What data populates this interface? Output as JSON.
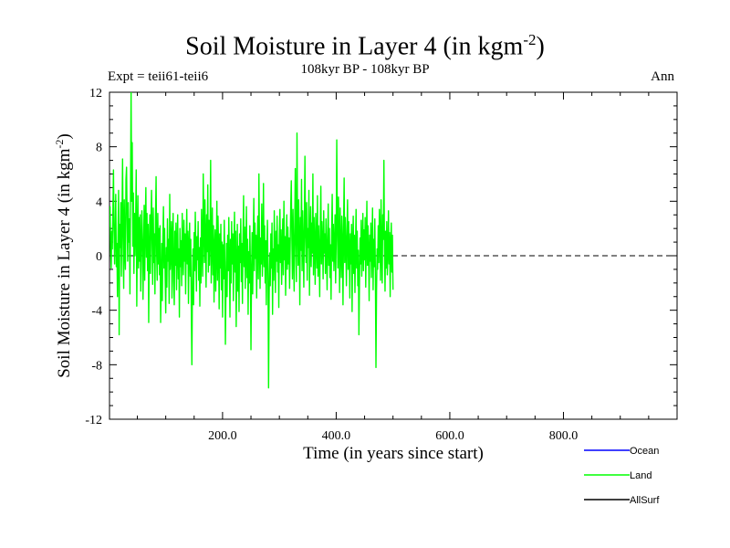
{
  "chart_data": {
    "type": "line",
    "title_main": "Soil Moisture in Layer 4 (in kgm",
    "title_sup": "-2",
    "title_close": ")",
    "subtitle": "108kyr BP - 108kyr BP",
    "left_note": "Expt = teii61-teii6",
    "right_note": "Ann",
    "xlabel": "Time (in years since start)",
    "ylabel_main": "Soil Moisture in Layer 4 (in kgm",
    "ylabel_sup": "-2",
    "ylabel_close": ")",
    "xlim": [
      1,
      1000
    ],
    "ylim": [
      -12,
      12
    ],
    "xticks": [
      200,
      400,
      600,
      800
    ],
    "xtick_labels": [
      "200.0",
      "400.0",
      "600.0",
      "800.0"
    ],
    "yticks": [
      -12,
      -8,
      -4,
      0,
      4,
      8,
      12
    ],
    "ytick_labels": [
      "-12",
      "-8",
      "-4",
      "0",
      "4",
      "8",
      "12"
    ],
    "zero_line": true,
    "legend_placement": "bottom-right, below plot",
    "series": [
      {
        "name": "Ocean",
        "color": "#0000ff",
        "values": []
      },
      {
        "name": "Land",
        "color": "#00ff00",
        "x_start": 1,
        "x_step": 1,
        "values": [
          2.1,
          3.6,
          0.4,
          -0.9,
          1.8,
          0.5,
          3.2,
          6.3,
          2.0,
          -0.6,
          1.7,
          4.5,
          -0.8,
          0.9,
          -3.0,
          1.4,
          4.8,
          -5.8,
          2.3,
          0.6,
          3.9,
          -1.5,
          2.7,
          7.1,
          1.2,
          -2.4,
          4.1,
          0.3,
          -1.0,
          5.6,
          6.5,
          2.6,
          -0.4,
          3.9,
          1.0,
          2.7,
          -2.8,
          4.5,
          12.1,
          4.0,
          8.3,
          0.7,
          4.6,
          -1.3,
          3.1,
          0.0,
          2.2,
          6.3,
          -3.7,
          1.4,
          4.4,
          -0.9,
          2.8,
          -0.4,
          3.0,
          -2.6,
          0.8,
          3.3,
          1.1,
          -3.2,
          0.5,
          3.7,
          -1.8,
          2.4,
          5.0,
          -0.1,
          3.1,
          -1.1,
          2.3,
          -4.9,
          0.4,
          3.0,
          -1.3,
          2.4,
          4.8,
          1.0,
          -2.1,
          3.5,
          -0.5,
          1.6,
          -2.8,
          2.8,
          5.8,
          0.2,
          -1.8,
          3.1,
          -0.6,
          2.0,
          -1.4,
          2.2,
          -4.9,
          -2.1,
          0.9,
          -3.3,
          1.4,
          3.6,
          -0.9,
          2.0,
          -1.6,
          -4.2,
          0.6,
          -2.3,
          2.7,
          -0.4,
          1.2,
          -3.5,
          4.5,
          -1.0,
          0.3,
          2.5,
          -3.1,
          1.3,
          3.1,
          -1.9,
          -3.6,
          1.8,
          -0.7,
          2.4,
          -2.5,
          0.6,
          3.0,
          -1.7,
          0.5,
          -4.5,
          2.0,
          -0.8,
          1.1,
          -2.2,
          3.1,
          0.2,
          -1.4,
          2.6,
          -0.4,
          1.6,
          -2.8,
          0.9,
          3.4,
          -0.6,
          1.8,
          -3.5,
          0.7,
          2.4,
          -1.5,
          1.2,
          -3.9,
          -8.0,
          -2.0,
          0.5,
          -3.6,
          1.7,
          -1.1,
          3.2,
          0.4,
          -2.6,
          1.4,
          -0.3,
          2.5,
          -1.8,
          0.6,
          -3.7,
          1.3,
          -2.0,
          3.4,
          0.8,
          -1.5,
          6.0,
          2.2,
          -0.5,
          4.1,
          1.2,
          -2.3,
          3.0,
          0.3,
          5.2,
          -1.2,
          2.6,
          -0.7,
          1.5,
          7.0,
          -2.0,
          0.9,
          3.5,
          -1.4,
          2.2,
          -3.4,
          0.6,
          1.9,
          -2.6,
          0.2,
          4.0,
          -1.8,
          2.9,
          0.5,
          -3.9,
          1.6,
          -0.9,
          2.3,
          -2.5,
          1.0,
          -4.5,
          0.8,
          -1.7,
          2.6,
          -0.4,
          -6.5,
          -2.3,
          0.9,
          -3.0,
          1.5,
          -1.1,
          2.8,
          -0.3,
          -4.5,
          1.2,
          -2.0,
          2.5,
          -0.6,
          1.6,
          -3.3,
          0.4,
          3.2,
          -1.2,
          1.8,
          -5.2,
          -1.0,
          2.3,
          -2.6,
          0.7,
          -4.1,
          1.6,
          -0.5,
          2.7,
          -1.9,
          0.9,
          -3.5,
          1.4,
          4.4,
          -0.8,
          2.1,
          -2.4,
          0.5,
          3.6,
          -1.6,
          1.2,
          -4.3,
          0.3,
          -2.0,
          2.2,
          -0.7,
          -6.9,
          -1.3,
          1.7,
          -2.8,
          0.8,
          4.2,
          -1.1,
          2.4,
          -0.2,
          1.5,
          -3.1,
          0.6,
          2.9,
          -1.7,
          6.0,
          0.9,
          -2.4,
          1.3,
          -0.6,
          3.8,
          -1.5,
          0.4,
          5.3,
          -0.8,
          2.2,
          -2.0,
          1.1,
          -3.6,
          0.7,
          2.6,
          -1.3,
          -9.7,
          -3.0,
          0.2,
          -2.2,
          1.6,
          -0.9,
          2.4,
          -4.3,
          0.5,
          -1.8,
          3.3,
          0.1,
          -2.7,
          1.8,
          -0.4,
          2.9,
          -1.2,
          0.8,
          -3.8,
          1.5,
          3.4,
          -0.5,
          1.9,
          -2.1,
          0.6,
          2.7,
          -1.4,
          4.0,
          -0.3,
          1.4,
          -2.9,
          0.8,
          3.0,
          -1.0,
          2.1,
          -0.6,
          1.3,
          -2.4,
          0.5,
          3.6,
          5.5,
          1.2,
          -1.7,
          3.4,
          0.3,
          -2.6,
          2.1,
          6.4,
          0.8,
          -1.9,
          9.0,
          2.3,
          -0.7,
          4.1,
          1.1,
          -3.6,
          2.8,
          0.4,
          5.6,
          -1.1,
          3.3,
          0.9,
          -2.3,
          2.5,
          7.3,
          1.4,
          -0.5,
          3.9,
          -1.8,
          2.0,
          0.6,
          4.8,
          -2.9,
          1.5,
          3.6,
          -0.8,
          2.4,
          0.2,
          6.0,
          -1.4,
          2.8,
          0.7,
          -2.1,
          3.1,
          1.0,
          -0.9,
          4.4,
          -1.5,
          2.2,
          0.4,
          -3.0,
          1.9,
          5.1,
          -0.6,
          2.5,
          0.9,
          -1.7,
          3.3,
          0.2,
          1.6,
          -1.3,
          2.7,
          0.5,
          -2.5,
          1.4,
          3.8,
          -0.7,
          2.0,
          -1.6,
          0.8,
          -3.2,
          1.7,
          4.5,
          -0.4,
          2.3,
          -1.1,
          0.6,
          3.0,
          -2.0,
          1.2,
          8.5,
          2.6,
          -0.9,
          4.3,
          1.3,
          -2.7,
          3.5,
          0.5,
          -1.6,
          2.9,
          0.9,
          -3.6,
          2.1,
          5.7,
          -0.5,
          2.8,
          0.7,
          -2.2,
          1.8,
          4.1,
          -1.0,
          2.5,
          0.3,
          -3.1,
          1.6,
          -0.6,
          2.3,
          -4.1,
          0.8,
          2.9,
          -1.3,
          1.5,
          -2.7,
          0.5,
          3.4,
          -0.9,
          1.8,
          -2.2,
          0.4,
          -5.8,
          -2.0,
          1.3,
          -0.6,
          2.6,
          -1.5,
          0.7,
          3.1,
          -1.1,
          1.9,
          -0.3,
          2.8,
          -2.3,
          1.0,
          4.0,
          -0.7,
          2.2,
          0.3,
          -3.3,
          1.5,
          -0.4,
          2.4,
          -1.6,
          0.6,
          3.5,
          -2.5,
          1.2,
          -0.8,
          2.7,
          -1.3,
          -8.2,
          -2.6,
          0.5,
          -1.0,
          2.2,
          -0.5,
          3.4,
          1.4,
          -1.8,
          4.1,
          0.6,
          -2.0,
          3.0,
          1.2,
          7.0,
          0.4,
          -2.6,
          1.8,
          -0.9,
          2.5,
          -1.4,
          0.3,
          3.3,
          -0.6,
          1.7,
          -3.0,
          0.9,
          2.4,
          -1.2,
          1.5,
          -2.5
        ]
      },
      {
        "name": "AllSurf",
        "color": "#000000",
        "values": []
      }
    ]
  }
}
